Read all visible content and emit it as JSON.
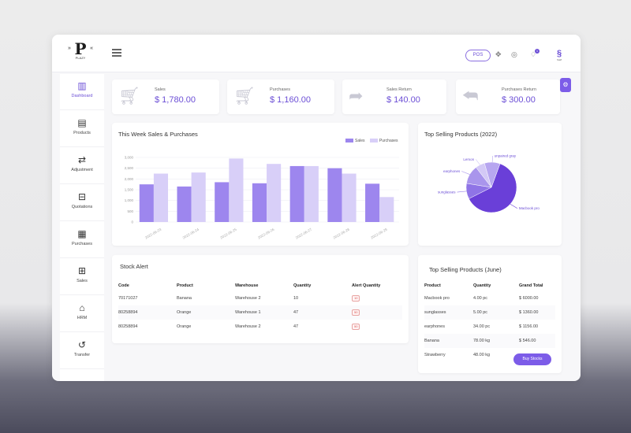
{
  "topbar": {
    "logo_letter": "P",
    "logo_sub": "PLAZY",
    "pos_label": "POS",
    "notification_count": "1",
    "avatar_label": "Staff"
  },
  "sidebar": {
    "items": [
      {
        "label": "Dashboard",
        "icon": "dashboard-icon",
        "active": true
      },
      {
        "label": "Products",
        "icon": "products-icon"
      },
      {
        "label": "Adjustment",
        "icon": "adjustment-icon"
      },
      {
        "label": "Quotations",
        "icon": "quotations-icon"
      },
      {
        "label": "Purchases",
        "icon": "purchases-icon"
      },
      {
        "label": "Sales",
        "icon": "sales-icon"
      },
      {
        "label": "HRM",
        "icon": "hrm-icon"
      },
      {
        "label": "Transfer",
        "icon": "transfer-icon"
      }
    ]
  },
  "stats": [
    {
      "label": "Sales",
      "value": "$ 1,780.00",
      "icon": "cart-icon"
    },
    {
      "label": "Purchases",
      "value": "$ 1,160.00",
      "icon": "cart-plus-icon"
    },
    {
      "label": "Sales Return",
      "value": "$ 140.00",
      "icon": "forward-arrow-icon"
    },
    {
      "label": "Purchases Return",
      "value": "$ 300.00",
      "icon": "back-arrow-icon"
    }
  ],
  "colors": {
    "accent": "#6c4fd6",
    "sales_bar": "#9d86ee",
    "purchases_bar": "#d8cff8"
  },
  "chart_data": [
    {
      "type": "bar",
      "title": "This Week Sales & Purchases",
      "categories": [
        "2022-06-23",
        "2022-06-24",
        "2022-06-25",
        "2022-06-26",
        "2022-06-27",
        "2022-06-28",
        "2022-06-29"
      ],
      "series": [
        {
          "name": "Sales",
          "values": [
            1750,
            1650,
            1850,
            1800,
            2600,
            2500,
            1780
          ]
        },
        {
          "name": "Purchases",
          "values": [
            2250,
            2300,
            2950,
            2700,
            2600,
            2250,
            1160
          ]
        }
      ],
      "y_ticks": [
        "0",
        "500",
        "1,000",
        "1,500",
        "2,000",
        "2,500",
        "3,000"
      ],
      "ylim": [
        0,
        3000
      ],
      "legend_position": "top-right",
      "grid": true
    },
    {
      "type": "pie",
      "title": "Top Selling Products (2022)",
      "labels": [
        "Macbook pro",
        "sunglasses",
        "earphones",
        "Lemon",
        "unpaired gray"
      ],
      "values": [
        62,
        10,
        12,
        6,
        10
      ]
    }
  ],
  "stock_alert": {
    "title": "Stock Alert",
    "headers": [
      "Code",
      "Product",
      "Warehouse",
      "Quantity",
      "Alert Quantity"
    ],
    "rows": [
      [
        "70171027",
        "Banana",
        "Warehouse 2",
        "10",
        "10"
      ],
      [
        "80258894",
        "Orange",
        "Warehouse 1",
        "47",
        "50"
      ],
      [
        "80258894",
        "Orange",
        "Warehouse 2",
        "47",
        "50"
      ]
    ]
  },
  "top_june": {
    "title": "Top Selling Products (June)",
    "headers": [
      "Product",
      "Quantity",
      "Grand Total"
    ],
    "rows": [
      [
        "Macbook pro",
        "4.00 pc",
        "$ 6000.00"
      ],
      [
        "sunglasses",
        "5.00 pc",
        "$ 1360.00"
      ],
      [
        "earphones",
        "34.00 pc",
        "$ 1156.00"
      ],
      [
        "Banana",
        "78.00 kg",
        "$ 546.00"
      ],
      [
        "Strawberry",
        "48.00 kg",
        ""
      ]
    ],
    "buy_label": "Buy Stocks"
  }
}
